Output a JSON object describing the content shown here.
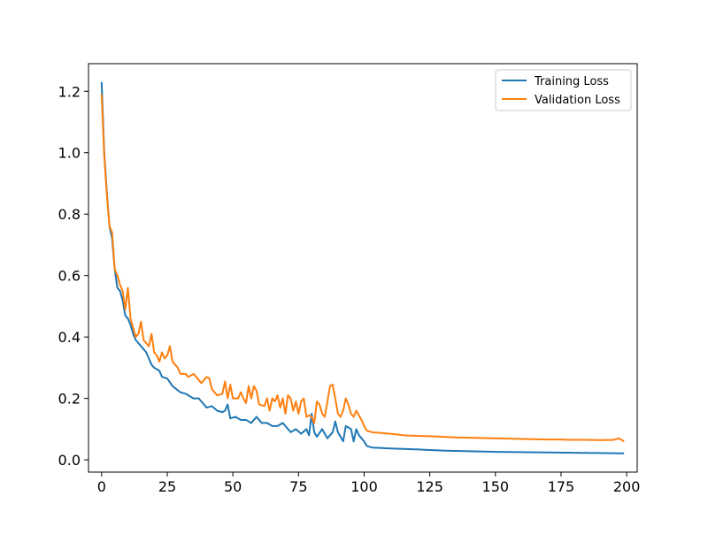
{
  "chart_data": {
    "type": "line",
    "title": "",
    "xlabel": "",
    "ylabel": "",
    "xlim": [
      -5,
      204
    ],
    "ylim": [
      -0.04,
      1.29
    ],
    "x_ticks": [
      0,
      25,
      50,
      75,
      100,
      125,
      150,
      175,
      200
    ],
    "y_ticks": [
      0.0,
      0.2,
      0.4,
      0.6,
      0.8,
      1.0,
      1.2
    ],
    "x_tick_labels": [
      "0",
      "25",
      "50",
      "75",
      "100",
      "125",
      "150",
      "175",
      "200"
    ],
    "y_tick_labels": [
      "0.0",
      "0.2",
      "0.4",
      "0.6",
      "0.8",
      "1.0",
      "1.2"
    ],
    "grid": false,
    "legend_position": "top-right",
    "series": [
      {
        "name": "Training Loss",
        "color": "#1f77b4",
        "anchors": [
          [
            0,
            1.23
          ],
          [
            1,
            1.0
          ],
          [
            2,
            0.87
          ],
          [
            3,
            0.76
          ],
          [
            4,
            0.72
          ],
          [
            5,
            0.62
          ],
          [
            6,
            0.56
          ],
          [
            7,
            0.55
          ],
          [
            8,
            0.52
          ],
          [
            9,
            0.47
          ],
          [
            10,
            0.46
          ],
          [
            11,
            0.44
          ],
          [
            12,
            0.41
          ],
          [
            13,
            0.39
          ],
          [
            14,
            0.38
          ],
          [
            15,
            0.37
          ],
          [
            16,
            0.36
          ],
          [
            17,
            0.35
          ],
          [
            18,
            0.33
          ],
          [
            19,
            0.31
          ],
          [
            20,
            0.3
          ],
          [
            22,
            0.29
          ],
          [
            23,
            0.27
          ],
          [
            25,
            0.265
          ],
          [
            27,
            0.24
          ],
          [
            30,
            0.22
          ],
          [
            32,
            0.215
          ],
          [
            35,
            0.2
          ],
          [
            37,
            0.2
          ],
          [
            38,
            0.19
          ],
          [
            40,
            0.17
          ],
          [
            42,
            0.175
          ],
          [
            44,
            0.16
          ],
          [
            46,
            0.155
          ],
          [
            47,
            0.16
          ],
          [
            48,
            0.18
          ],
          [
            49,
            0.135
          ],
          [
            51,
            0.14
          ],
          [
            53,
            0.13
          ],
          [
            55,
            0.13
          ],
          [
            57,
            0.12
          ],
          [
            59,
            0.14
          ],
          [
            61,
            0.12
          ],
          [
            63,
            0.12
          ],
          [
            65,
            0.11
          ],
          [
            67,
            0.11
          ],
          [
            69,
            0.12
          ],
          [
            70,
            0.11
          ],
          [
            72,
            0.09
          ],
          [
            74,
            0.1
          ],
          [
            76,
            0.085
          ],
          [
            78,
            0.1
          ],
          [
            79,
            0.08
          ],
          [
            80,
            0.15
          ],
          [
            81,
            0.09
          ],
          [
            82,
            0.075
          ],
          [
            84,
            0.1
          ],
          [
            86,
            0.07
          ],
          [
            87,
            0.08
          ],
          [
            88,
            0.09
          ],
          [
            89,
            0.125
          ],
          [
            90,
            0.09
          ],
          [
            92,
            0.06
          ],
          [
            93,
            0.11
          ],
          [
            95,
            0.1
          ],
          [
            96,
            0.06
          ],
          [
            97,
            0.1
          ],
          [
            98,
            0.08
          ],
          [
            100,
            0.06
          ],
          [
            101,
            0.045
          ],
          [
            103,
            0.04
          ],
          [
            110,
            0.037
          ],
          [
            120,
            0.034
          ],
          [
            130,
            0.03
          ],
          [
            140,
            0.028
          ],
          [
            150,
            0.026
          ],
          [
            160,
            0.025
          ],
          [
            170,
            0.024
          ],
          [
            180,
            0.023
          ],
          [
            190,
            0.022
          ],
          [
            199,
            0.021
          ]
        ]
      },
      {
        "name": "Validation Loss",
        "color": "#ff7f0e",
        "anchors": [
          [
            0,
            1.19
          ],
          [
            1,
            0.99
          ],
          [
            2,
            0.86
          ],
          [
            3,
            0.76
          ],
          [
            4,
            0.74
          ],
          [
            5,
            0.62
          ],
          [
            6,
            0.6
          ],
          [
            7,
            0.57
          ],
          [
            8,
            0.55
          ],
          [
            9,
            0.49
          ],
          [
            10,
            0.56
          ],
          [
            11,
            0.46
          ],
          [
            12,
            0.43
          ],
          [
            13,
            0.4
          ],
          [
            14,
            0.41
          ],
          [
            15,
            0.45
          ],
          [
            16,
            0.39
          ],
          [
            17,
            0.38
          ],
          [
            18,
            0.37
          ],
          [
            19,
            0.41
          ],
          [
            20,
            0.35
          ],
          [
            21,
            0.34
          ],
          [
            22,
            0.32
          ],
          [
            23,
            0.35
          ],
          [
            24,
            0.33
          ],
          [
            25,
            0.34
          ],
          [
            26,
            0.37
          ],
          [
            27,
            0.32
          ],
          [
            28,
            0.31
          ],
          [
            29,
            0.3
          ],
          [
            30,
            0.28
          ],
          [
            32,
            0.28
          ],
          [
            33,
            0.27
          ],
          [
            35,
            0.28
          ],
          [
            37,
            0.26
          ],
          [
            38,
            0.25
          ],
          [
            40,
            0.27
          ],
          [
            41,
            0.265
          ],
          [
            42,
            0.23
          ],
          [
            44,
            0.21
          ],
          [
            46,
            0.215
          ],
          [
            47,
            0.255
          ],
          [
            48,
            0.2
          ],
          [
            49,
            0.245
          ],
          [
            50,
            0.2
          ],
          [
            52,
            0.2
          ],
          [
            53,
            0.22
          ],
          [
            54,
            0.2
          ],
          [
            55,
            0.185
          ],
          [
            56,
            0.24
          ],
          [
            57,
            0.2
          ],
          [
            58,
            0.24
          ],
          [
            59,
            0.225
          ],
          [
            60,
            0.18
          ],
          [
            62,
            0.175
          ],
          [
            63,
            0.2
          ],
          [
            64,
            0.16
          ],
          [
            65,
            0.2
          ],
          [
            66,
            0.19
          ],
          [
            67,
            0.21
          ],
          [
            68,
            0.17
          ],
          [
            69,
            0.2
          ],
          [
            70,
            0.15
          ],
          [
            71,
            0.21
          ],
          [
            72,
            0.2
          ],
          [
            73,
            0.16
          ],
          [
            74,
            0.19
          ],
          [
            75,
            0.15
          ],
          [
            76,
            0.19
          ],
          [
            77,
            0.2
          ],
          [
            78,
            0.14
          ],
          [
            79,
            0.145
          ],
          [
            80,
            0.14
          ],
          [
            81,
            0.12
          ],
          [
            82,
            0.19
          ],
          [
            83,
            0.18
          ],
          [
            84,
            0.15
          ],
          [
            85,
            0.14
          ],
          [
            86,
            0.19
          ],
          [
            87,
            0.24
          ],
          [
            88,
            0.245
          ],
          [
            89,
            0.2
          ],
          [
            90,
            0.15
          ],
          [
            91,
            0.14
          ],
          [
            92,
            0.16
          ],
          [
            93,
            0.2
          ],
          [
            94,
            0.18
          ],
          [
            95,
            0.15
          ],
          [
            96,
            0.14
          ],
          [
            97,
            0.16
          ],
          [
            98,
            0.145
          ],
          [
            99,
            0.13
          ],
          [
            100,
            0.11
          ],
          [
            101,
            0.095
          ],
          [
            103,
            0.09
          ],
          [
            110,
            0.085
          ],
          [
            115,
            0.08
          ],
          [
            120,
            0.078
          ],
          [
            125,
            0.077
          ],
          [
            130,
            0.075
          ],
          [
            135,
            0.073
          ],
          [
            140,
            0.072
          ],
          [
            145,
            0.071
          ],
          [
            150,
            0.07
          ],
          [
            155,
            0.069
          ],
          [
            160,
            0.068
          ],
          [
            165,
            0.067
          ],
          [
            170,
            0.066
          ],
          [
            175,
            0.066
          ],
          [
            180,
            0.065
          ],
          [
            185,
            0.065
          ],
          [
            190,
            0.064
          ],
          [
            195,
            0.065
          ],
          [
            197,
            0.07
          ],
          [
            199,
            0.06
          ]
        ]
      }
    ]
  }
}
